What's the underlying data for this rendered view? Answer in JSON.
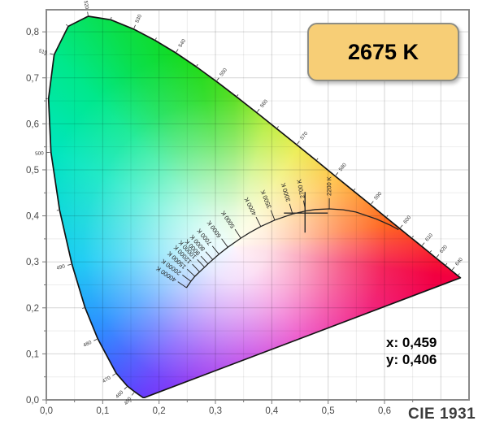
{
  "badge": {
    "label": "2675 K",
    "fill": "#F7CE76",
    "border_color": "#8D8D85"
  },
  "readout": {
    "x": "x: 0,459",
    "y": "y: 0,406"
  },
  "footer": {
    "label": "CIE 1931"
  },
  "chart_data": {
    "type": "scatter",
    "subtype": "cie-1931-chromaticity-diagram",
    "title": "CIE 1931",
    "grid": "on",
    "xlim": [
      0,
      0.75
    ],
    "ylim": [
      0,
      0.848
    ],
    "x_tick_labels": [
      "0,0",
      "0,1",
      "0,2",
      "0,3",
      "0,4",
      "0,5",
      "0,6"
    ],
    "y_tick_labels": [
      "0,0",
      "0,1",
      "0,2",
      "0,3",
      "0,4",
      "0,5",
      "0,6",
      "0,7",
      "0,8"
    ],
    "point": {
      "x": 0.459,
      "y": 0.406,
      "cct": 2675,
      "cct_label": "2675 K",
      "x_label": "x: 0,459",
      "y_label": "y: 0,406"
    },
    "white_point": {
      "x": 0.333,
      "y": 0.333
    },
    "spectral_locus": [
      [
        380,
        0.1741,
        0.005
      ],
      [
        420,
        0.1714,
        0.0051
      ],
      [
        440,
        0.1644,
        0.0109
      ],
      [
        450,
        0.1566,
        0.0177
      ],
      [
        460,
        0.144,
        0.0297
      ],
      [
        470,
        0.1241,
        0.0578
      ],
      [
        480,
        0.0913,
        0.1327
      ],
      [
        485,
        0.0687,
        0.2007
      ],
      [
        490,
        0.0454,
        0.295
      ],
      [
        495,
        0.0235,
        0.4127
      ],
      [
        500,
        0.0082,
        0.5384
      ],
      [
        505,
        0.0039,
        0.6548
      ],
      [
        510,
        0.0139,
        0.7502
      ],
      [
        515,
        0.0389,
        0.812
      ],
      [
        520,
        0.0743,
        0.8338
      ],
      [
        525,
        0.1142,
        0.8262
      ],
      [
        530,
        0.1547,
        0.8059
      ],
      [
        535,
        0.1929,
        0.7816
      ],
      [
        540,
        0.2296,
        0.7543
      ],
      [
        545,
        0.2658,
        0.7243
      ],
      [
        550,
        0.3016,
        0.6923
      ],
      [
        555,
        0.3373,
        0.6588
      ],
      [
        560,
        0.3731,
        0.6245
      ],
      [
        565,
        0.4087,
        0.5896
      ],
      [
        570,
        0.4441,
        0.5547
      ],
      [
        575,
        0.4788,
        0.5202
      ],
      [
        580,
        0.5125,
        0.4866
      ],
      [
        585,
        0.5448,
        0.4544
      ],
      [
        590,
        0.5752,
        0.4242
      ],
      [
        595,
        0.6029,
        0.3965
      ],
      [
        600,
        0.627,
        0.3725
      ],
      [
        605,
        0.6482,
        0.3514
      ],
      [
        610,
        0.6658,
        0.334
      ],
      [
        615,
        0.6801,
        0.3197
      ],
      [
        620,
        0.6915,
        0.3083
      ],
      [
        630,
        0.7079,
        0.292
      ],
      [
        640,
        0.719,
        0.2809
      ],
      [
        660,
        0.73,
        0.27
      ],
      [
        700,
        0.7347,
        0.2653
      ]
    ],
    "wavelength_labels": [
      450,
      460,
      470,
      480,
      490,
      500,
      510,
      520,
      530,
      540,
      550,
      560,
      570,
      580,
      590,
      600,
      610,
      620,
      640
    ],
    "planckian_locus": [
      [
        40000,
        0.2487,
        0.2438,
        "40000 K"
      ],
      [
        20000,
        0.2565,
        0.2577,
        "20000 K"
      ],
      [
        15000,
        0.2636,
        0.2685,
        "15000 K"
      ],
      [
        12000,
        0.2719,
        0.2782,
        "12000 K"
      ],
      [
        10000,
        0.2807,
        0.2884,
        "10000 K"
      ],
      [
        9000,
        0.2869,
        0.2956,
        "9000 K"
      ],
      [
        8000,
        0.2952,
        0.3048,
        "8000 K"
      ],
      [
        7000,
        0.3064,
        0.3166,
        "7000 K"
      ],
      [
        6000,
        0.3221,
        0.3318,
        "6000 K"
      ],
      [
        5000,
        0.3451,
        0.3516,
        "5000 K"
      ],
      [
        4500,
        0.3608,
        0.3635,
        null
      ],
      [
        4000,
        0.3805,
        0.3768,
        "4000 K"
      ],
      [
        3500,
        0.4053,
        0.3907,
        "3500 K"
      ],
      [
        3000,
        0.4369,
        0.4041,
        "3000 K"
      ],
      [
        2700,
        0.4599,
        0.4106,
        "2700 K"
      ],
      [
        2500,
        0.477,
        0.4137,
        null
      ],
      [
        2200,
        0.502,
        0.4152,
        "2200 K"
      ],
      [
        2000,
        0.5267,
        0.4133,
        null
      ],
      [
        1800,
        0.5493,
        0.4082,
        null
      ],
      [
        1500,
        0.5857,
        0.3931,
        null
      ],
      [
        1300,
        0.6088,
        0.3805,
        null
      ],
      [
        1150,
        0.625,
        0.37,
        null
      ]
    ],
    "gamut_colors": [
      [
        0,
        "#3FD900"
      ],
      [
        14,
        "#9CE800"
      ],
      [
        33,
        "#E3E400"
      ],
      [
        55,
        "#FFAE00"
      ],
      [
        71,
        "#FF7300"
      ],
      [
        82,
        "#FF5000"
      ],
      [
        90,
        "#FA2828"
      ],
      [
        98,
        "#F20040"
      ],
      [
        122,
        "#EF0078"
      ],
      [
        144,
        "#E400AE"
      ],
      [
        172,
        "#AE00DC"
      ],
      [
        198,
        "#7C14F0"
      ],
      [
        212,
        "#5A2EFC"
      ],
      [
        226,
        "#2F55FF"
      ],
      [
        240,
        "#0E82FF"
      ],
      [
        265,
        "#00C6F2"
      ],
      [
        298,
        "#00E6BE"
      ],
      [
        317,
        "#00E88C"
      ],
      [
        331,
        "#0ADF4C"
      ],
      [
        349,
        "#17D90E"
      ],
      [
        360,
        "#3FD900"
      ]
    ]
  }
}
